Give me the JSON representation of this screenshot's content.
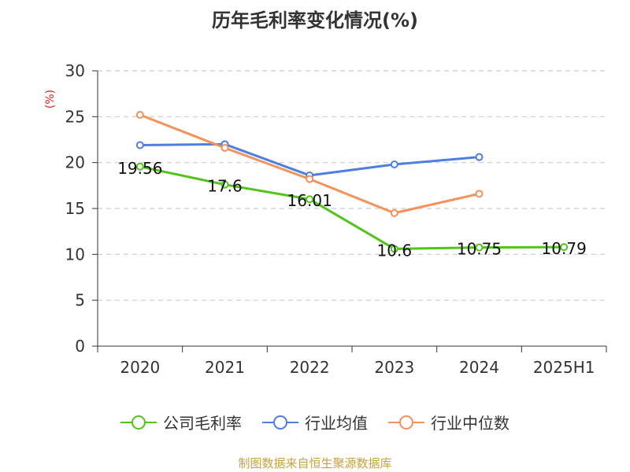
{
  "chart_data": {
    "type": "line",
    "title": "历年毛利率变化情况(%)",
    "ylabel": "(%)",
    "xlabel": "",
    "categories": [
      "2020",
      "2021",
      "2022",
      "2023",
      "2024",
      "2025H1"
    ],
    "ylim": [
      0,
      30
    ],
    "yticks": [
      0,
      5,
      10,
      15,
      20,
      25,
      30
    ],
    "grid": true,
    "legend_position": "bottom",
    "series": [
      {
        "name": "公司毛利率",
        "color": "#52c41a",
        "values": [
          19.56,
          17.6,
          16.01,
          10.6,
          10.75,
          10.79
        ],
        "labels": [
          "19.56",
          "17.6",
          "16.01",
          "10.6",
          "10.75",
          "10.79"
        ]
      },
      {
        "name": "行业均值",
        "color": "#4e7fe0",
        "values": [
          21.9,
          22.0,
          18.6,
          19.8,
          20.6,
          null
        ]
      },
      {
        "name": "行业中位数",
        "color": "#f5915a",
        "values": [
          25.2,
          21.6,
          18.2,
          14.5,
          16.6,
          null
        ]
      }
    ]
  },
  "footer": "制图数据来自恒生聚源数据库"
}
